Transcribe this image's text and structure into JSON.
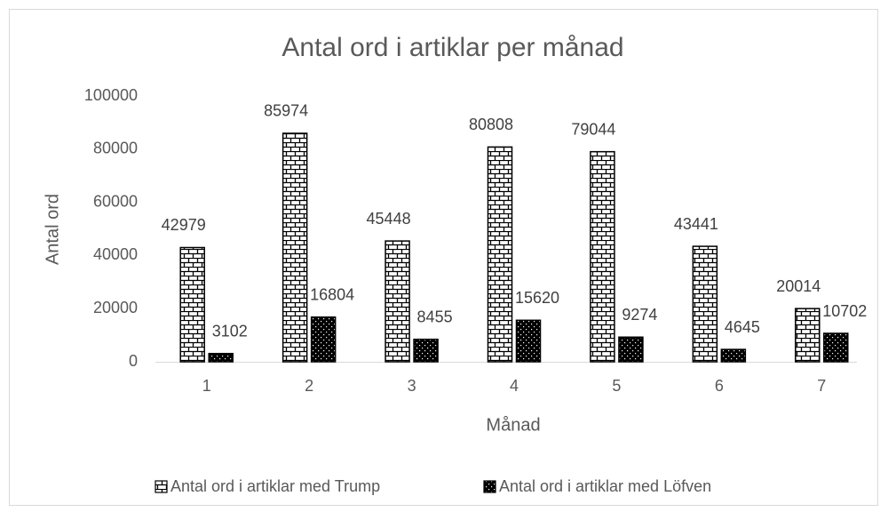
{
  "chart_data": {
    "type": "bar",
    "title": "Antal ord i artiklar per månad",
    "x_label": "Månad",
    "y_label": "Antal ord",
    "categories": [
      "1",
      "2",
      "3",
      "4",
      "5",
      "6",
      "7"
    ],
    "series": [
      {
        "name": "Antal ord i artiklar med Trump",
        "color": "#000000",
        "pattern": "brick",
        "values": [
          42979,
          85974,
          45448,
          80808,
          79044,
          43441,
          20014
        ]
      },
      {
        "name": "Antal ord i artiklar med Löfven",
        "color": "#000000",
        "pattern": "dots",
        "values": [
          3102,
          16804,
          8455,
          15620,
          9274,
          4645,
          10702
        ]
      }
    ],
    "ylim": [
      0,
      100000
    ],
    "yticks": [
      0,
      20000,
      40000,
      60000,
      80000,
      100000
    ],
    "grid": false,
    "legend": "bottom",
    "data_labels": true
  }
}
